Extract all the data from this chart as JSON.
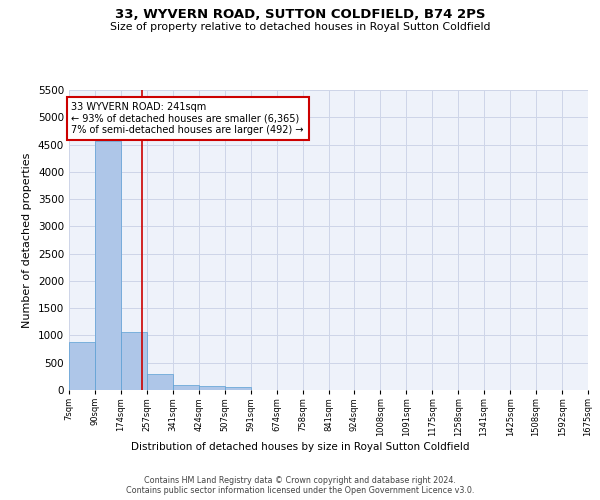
{
  "title": "33, WYVERN ROAD, SUTTON COLDFIELD, B74 2PS",
  "subtitle": "Size of property relative to detached houses in Royal Sutton Coldfield",
  "xlabel": "Distribution of detached houses by size in Royal Sutton Coldfield",
  "ylabel": "Number of detached properties",
  "footer_line1": "Contains HM Land Registry data © Crown copyright and database right 2024.",
  "footer_line2": "Contains public sector information licensed under the Open Government Licence v3.0.",
  "annotation_line1": "33 WYVERN ROAD: 241sqm",
  "annotation_line2": "← 93% of detached houses are smaller (6,365)",
  "annotation_line3": "7% of semi-detached houses are larger (492) →",
  "property_size": 241,
  "bar_color": "#aec6e8",
  "bar_edge_color": "#5a9fd4",
  "grid_color": "#cdd5e8",
  "background_color": "#eef2fa",
  "vline_color": "#cc0000",
  "annotation_box_color": "#cc0000",
  "bin_edges": [
    7,
    90,
    174,
    257,
    341,
    424,
    507,
    591,
    674,
    758,
    841,
    924,
    1008,
    1091,
    1175,
    1258,
    1341,
    1425,
    1508,
    1592,
    1675
  ],
  "bin_labels": [
    "7sqm",
    "90sqm",
    "174sqm",
    "257sqm",
    "341sqm",
    "424sqm",
    "507sqm",
    "591sqm",
    "674sqm",
    "758sqm",
    "841sqm",
    "924sqm",
    "1008sqm",
    "1091sqm",
    "1175sqm",
    "1258sqm",
    "1341sqm",
    "1425sqm",
    "1508sqm",
    "1592sqm",
    "1675sqm"
  ],
  "counts": [
    880,
    4560,
    1060,
    285,
    90,
    75,
    55,
    0,
    0,
    0,
    0,
    0,
    0,
    0,
    0,
    0,
    0,
    0,
    0,
    0
  ],
  "ylim": [
    0,
    5500
  ],
  "yticks": [
    0,
    500,
    1000,
    1500,
    2000,
    2500,
    3000,
    3500,
    4000,
    4500,
    5000,
    5500
  ]
}
